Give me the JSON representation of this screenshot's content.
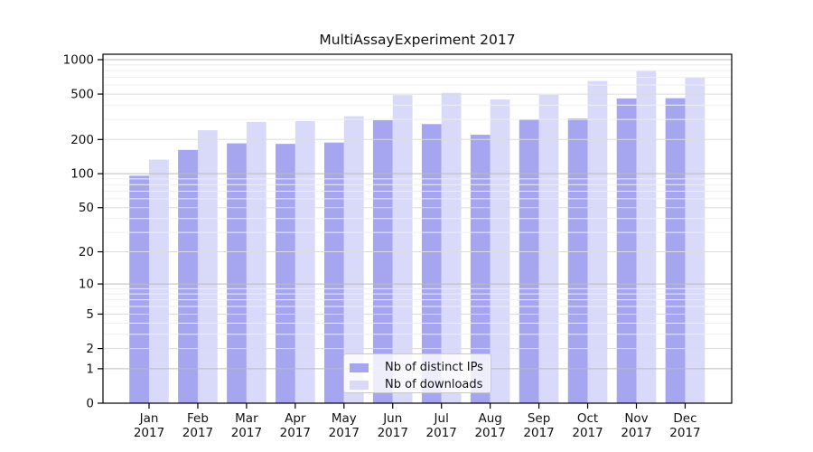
{
  "title": "MultiAssayExperiment 2017",
  "colors": {
    "distinct_ips": "#a5a5f0",
    "downloads": "#d9d9f9",
    "grid_major": "#bdbdbd",
    "grid_sub": "#dcdcdc",
    "grid_minor": "#efefef",
    "axis": "#000000"
  },
  "legend": {
    "items": [
      {
        "label": "Nb of distinct IPs",
        "series": "distinct_ips"
      },
      {
        "label": "Nb of downloads",
        "series": "downloads"
      }
    ]
  },
  "chart_data": {
    "type": "bar",
    "title": "MultiAssayExperiment 2017",
    "categories": [
      "Jan",
      "Feb",
      "Mar",
      "Apr",
      "May",
      "Jun",
      "Jul",
      "Aug",
      "Sep",
      "Oct",
      "Nov",
      "Dec"
    ],
    "year": "2017",
    "series": [
      {
        "name": "Nb of distinct IPs",
        "color": "#a5a5f0",
        "values": [
          96,
          162,
          185,
          183,
          188,
          295,
          273,
          220,
          300,
          306,
          458,
          460
        ]
      },
      {
        "name": "Nb of downloads",
        "color": "#d9d9f9",
        "values": [
          133,
          241,
          285,
          290,
          320,
          490,
          512,
          448,
          492,
          650,
          808,
          705
        ]
      }
    ],
    "xlabel": "",
    "ylabel": "",
    "yscale": "log10(1+x)",
    "yticks": [
      0,
      1,
      2,
      5,
      10,
      20,
      50,
      100,
      200,
      500,
      1000
    ],
    "ylim": [
      0,
      1000
    ],
    "grid": true,
    "legend_position": "inside-bottom-center"
  }
}
